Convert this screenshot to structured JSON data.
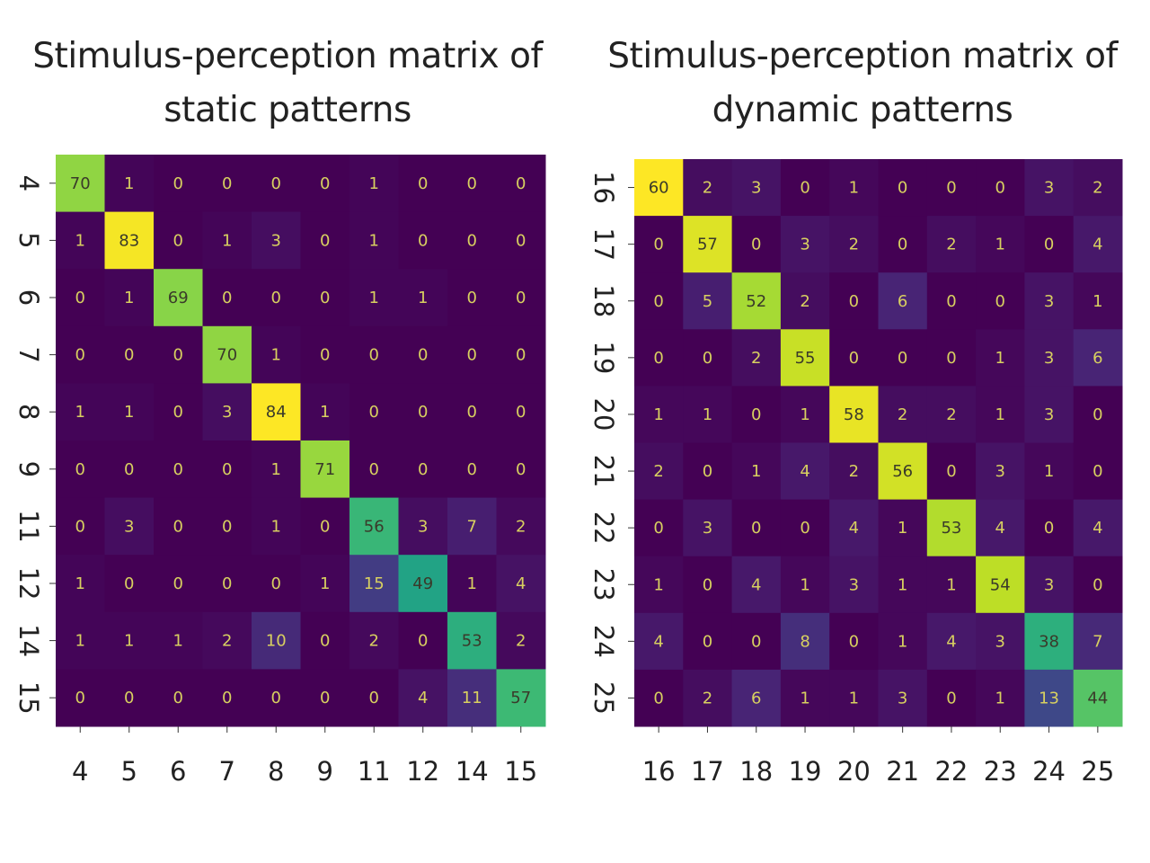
{
  "chart_data": [
    {
      "type": "heatmap",
      "title_line1": "Stimulus-perception matrix of",
      "title_line2": "static patterns",
      "row_labels": [
        "4",
        "5",
        "6",
        "7",
        "8",
        "9",
        "11",
        "12",
        "14",
        "15"
      ],
      "col_labels": [
        "4",
        "5",
        "6",
        "7",
        "8",
        "9",
        "11",
        "12",
        "14",
        "15"
      ],
      "matrix": [
        [
          70,
          1,
          0,
          0,
          0,
          0,
          1,
          0,
          0,
          0
        ],
        [
          1,
          83,
          0,
          1,
          3,
          0,
          1,
          0,
          0,
          0
        ],
        [
          0,
          1,
          69,
          0,
          0,
          0,
          1,
          1,
          0,
          0
        ],
        [
          0,
          0,
          0,
          70,
          1,
          0,
          0,
          0,
          0,
          0
        ],
        [
          1,
          1,
          0,
          3,
          84,
          1,
          0,
          0,
          0,
          0
        ],
        [
          0,
          0,
          0,
          0,
          1,
          71,
          0,
          0,
          0,
          0
        ],
        [
          0,
          3,
          0,
          0,
          1,
          0,
          56,
          3,
          7,
          2
        ],
        [
          1,
          0,
          0,
          0,
          0,
          1,
          15,
          49,
          1,
          4
        ],
        [
          1,
          1,
          1,
          2,
          10,
          0,
          2,
          0,
          53,
          2
        ],
        [
          0,
          0,
          0,
          0,
          0,
          0,
          0,
          4,
          11,
          57
        ]
      ],
      "colormap": "viridis",
      "vmin": 0,
      "vmax": 84
    },
    {
      "type": "heatmap",
      "title_line1": "Stimulus-perception matrix of",
      "title_line2": "dynamic patterns",
      "row_labels": [
        "16",
        "17",
        "18",
        "19",
        "20",
        "21",
        "22",
        "23",
        "24",
        "25"
      ],
      "col_labels": [
        "16",
        "17",
        "18",
        "19",
        "20",
        "21",
        "22",
        "23",
        "24",
        "25"
      ],
      "matrix": [
        [
          60,
          2,
          3,
          0,
          1,
          0,
          0,
          0,
          3,
          2
        ],
        [
          0,
          57,
          0,
          3,
          2,
          0,
          2,
          1,
          0,
          4
        ],
        [
          0,
          5,
          52,
          2,
          0,
          6,
          0,
          0,
          3,
          1
        ],
        [
          0,
          0,
          2,
          55,
          0,
          0,
          0,
          1,
          3,
          6
        ],
        [
          1,
          1,
          0,
          1,
          58,
          2,
          2,
          1,
          3,
          0
        ],
        [
          2,
          0,
          1,
          4,
          2,
          56,
          0,
          3,
          1,
          0
        ],
        [
          0,
          3,
          0,
          0,
          4,
          1,
          53,
          4,
          0,
          4
        ],
        [
          1,
          0,
          4,
          1,
          3,
          1,
          1,
          54,
          3,
          0
        ],
        [
          4,
          0,
          0,
          8,
          0,
          1,
          4,
          3,
          38,
          7
        ],
        [
          0,
          2,
          6,
          1,
          1,
          3,
          0,
          1,
          13,
          44
        ]
      ],
      "colormap": "viridis",
      "vmin": 0,
      "vmax": 60
    }
  ]
}
